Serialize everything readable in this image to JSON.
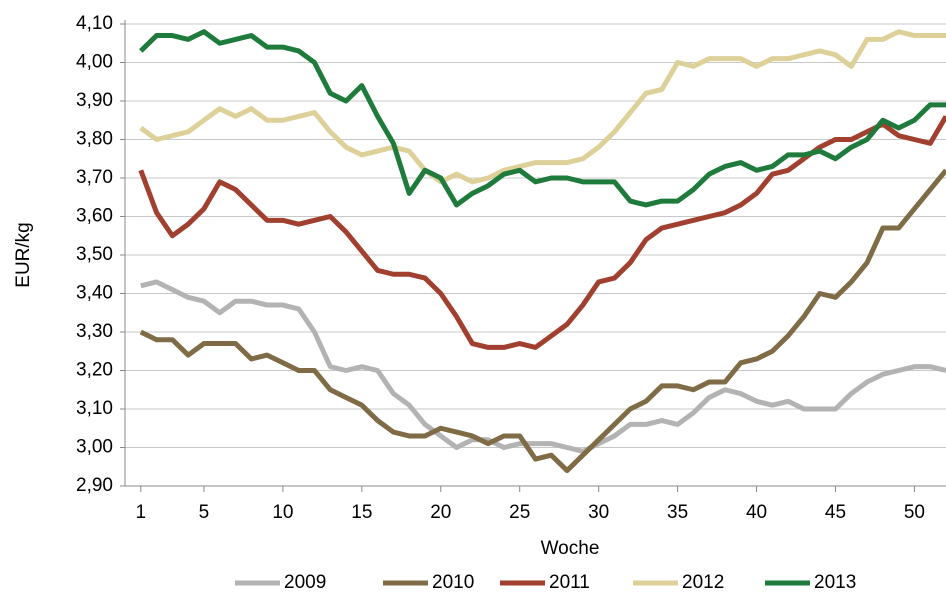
{
  "chart_data": {
    "type": "line",
    "ylabel": "EUR/kg",
    "xlabel": "Woche",
    "x": [
      1,
      2,
      3,
      4,
      5,
      6,
      7,
      8,
      9,
      10,
      11,
      12,
      13,
      14,
      15,
      16,
      17,
      18,
      19,
      20,
      21,
      22,
      23,
      24,
      25,
      26,
      27,
      28,
      29,
      30,
      31,
      32,
      33,
      34,
      35,
      36,
      37,
      38,
      39,
      40,
      41,
      42,
      43,
      44,
      45,
      46,
      47,
      48,
      49,
      50,
      51,
      52
    ],
    "xlim": [
      0,
      52
    ],
    "xticks": [
      1,
      5,
      10,
      15,
      20,
      25,
      30,
      35,
      40,
      45,
      50
    ],
    "ylim": [
      2.9,
      4.1
    ],
    "yticks": [
      {
        "value": 2.9,
        "label": "2,90"
      },
      {
        "value": 3.0,
        "label": "3,00"
      },
      {
        "value": 3.1,
        "label": "3,10"
      },
      {
        "value": 3.2,
        "label": "3,20"
      },
      {
        "value": 3.3,
        "label": "3,30"
      },
      {
        "value": 3.4,
        "label": "3,40"
      },
      {
        "value": 3.5,
        "label": "3,50"
      },
      {
        "value": 3.6,
        "label": "3,60"
      },
      {
        "value": 3.7,
        "label": "3,70"
      },
      {
        "value": 3.8,
        "label": "3,80"
      },
      {
        "value": 3.9,
        "label": "3,90"
      },
      {
        "value": 4.0,
        "label": "4,00"
      },
      {
        "value": 4.1,
        "label": "4,10"
      }
    ],
    "grid": true,
    "legend": "bottom",
    "series": [
      {
        "name": "2009",
        "color": "#b3b3b3",
        "values": [
          3.42,
          3.43,
          3.41,
          3.39,
          3.38,
          3.35,
          3.38,
          3.38,
          3.37,
          3.37,
          3.36,
          3.3,
          3.21,
          3.2,
          3.21,
          3.2,
          3.14,
          3.11,
          3.06,
          3.03,
          3.0,
          3.02,
          3.02,
          3.0,
          3.01,
          3.01,
          3.01,
          3.0,
          2.99,
          3.01,
          3.03,
          3.06,
          3.06,
          3.07,
          3.06,
          3.09,
          3.13,
          3.15,
          3.14,
          3.12,
          3.11,
          3.12,
          3.1,
          3.1,
          3.1,
          3.14,
          3.17,
          3.19,
          3.2,
          3.21,
          3.21,
          3.2
        ]
      },
      {
        "name": "2010",
        "color": "#7f6c46",
        "values": [
          3.3,
          3.28,
          3.28,
          3.24,
          3.27,
          3.27,
          3.27,
          3.23,
          3.24,
          3.22,
          3.2,
          3.2,
          3.15,
          3.13,
          3.11,
          3.07,
          3.04,
          3.03,
          3.03,
          3.05,
          3.04,
          3.03,
          3.01,
          3.03,
          3.03,
          2.97,
          2.98,
          2.94,
          2.98,
          3.02,
          3.06,
          3.1,
          3.12,
          3.16,
          3.16,
          3.15,
          3.17,
          3.17,
          3.22,
          3.23,
          3.25,
          3.29,
          3.34,
          3.4,
          3.39,
          3.43,
          3.48,
          3.57,
          3.57,
          3.62,
          3.67,
          3.72
        ]
      },
      {
        "name": "2011",
        "color": "#a1402f",
        "values": [
          3.72,
          3.61,
          3.55,
          3.58,
          3.62,
          3.69,
          3.67,
          3.63,
          3.59,
          3.59,
          3.58,
          3.59,
          3.6,
          3.56,
          3.51,
          3.46,
          3.45,
          3.45,
          3.44,
          3.4,
          3.34,
          3.27,
          3.26,
          3.26,
          3.27,
          3.26,
          3.29,
          3.32,
          3.37,
          3.43,
          3.44,
          3.48,
          3.54,
          3.57,
          3.58,
          3.59,
          3.6,
          3.61,
          3.63,
          3.66,
          3.71,
          3.72,
          3.75,
          3.78,
          3.8,
          3.8,
          3.82,
          3.84,
          3.81,
          3.8,
          3.79,
          3.86
        ]
      },
      {
        "name": "2012",
        "color": "#ddd199",
        "values": [
          3.83,
          3.8,
          3.81,
          3.82,
          3.85,
          3.88,
          3.86,
          3.88,
          3.85,
          3.85,
          3.86,
          3.87,
          3.82,
          3.78,
          3.76,
          3.77,
          3.78,
          3.77,
          3.72,
          3.69,
          3.71,
          3.69,
          3.7,
          3.72,
          3.73,
          3.74,
          3.74,
          3.74,
          3.75,
          3.78,
          3.82,
          3.87,
          3.92,
          3.93,
          4.0,
          3.99,
          4.01,
          4.01,
          4.01,
          3.99,
          4.01,
          4.01,
          4.02,
          4.03,
          4.02,
          3.99,
          4.06,
          4.06,
          4.08,
          4.07,
          4.07,
          4.07
        ]
      },
      {
        "name": "2013",
        "color": "#1e7b3b",
        "values": [
          4.03,
          4.07,
          4.07,
          4.06,
          4.08,
          4.05,
          4.06,
          4.07,
          4.04,
          4.04,
          4.03,
          4.0,
          3.92,
          3.9,
          3.94,
          3.86,
          3.79,
          3.66,
          3.72,
          3.7,
          3.63,
          3.66,
          3.68,
          3.71,
          3.72,
          3.69,
          3.7,
          3.7,
          3.69,
          3.69,
          3.69,
          3.64,
          3.63,
          3.64,
          3.64,
          3.67,
          3.71,
          3.73,
          3.74,
          3.72,
          3.73,
          3.76,
          3.76,
          3.77,
          3.75,
          3.78,
          3.8,
          3.85,
          3.83,
          3.85,
          3.89,
          3.89
        ]
      }
    ]
  }
}
